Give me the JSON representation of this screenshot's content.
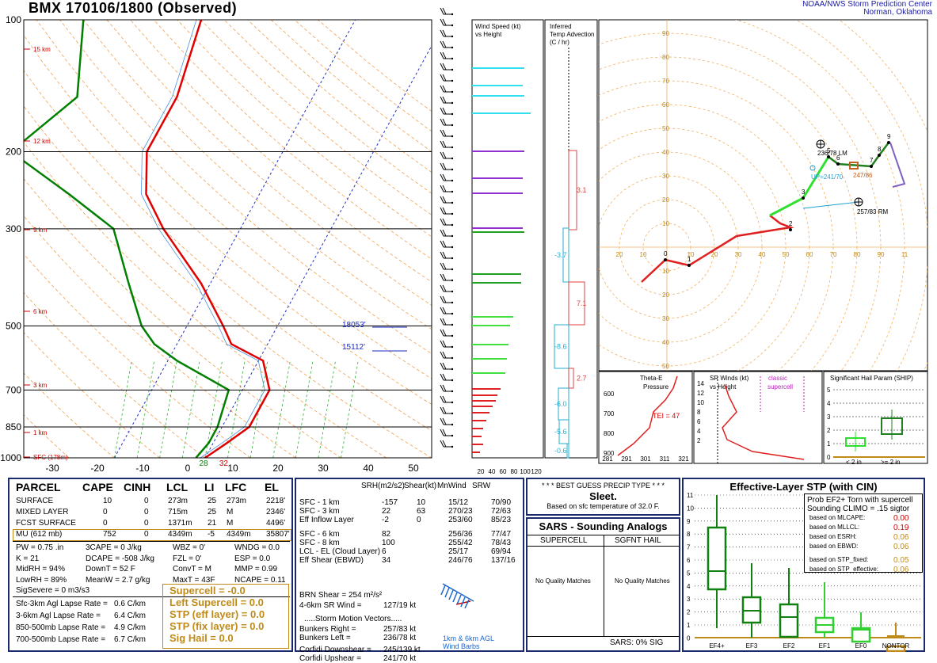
{
  "header": {
    "title": "BMX   170106/1800  (Observed)",
    "credit_line1": "NOAA/NWS Storm Prediction Center",
    "credit_line2": "Norman, Oklahoma"
  },
  "chart_data": [
    {
      "type": "line",
      "panel": "skew-t",
      "pressure_ticks": [
        "100",
        "200",
        "300",
        "500",
        "700",
        "850",
        "1000"
      ],
      "temperature_ticks": [
        "-30",
        "-20",
        "-10",
        "0",
        "10",
        "20",
        "30",
        "40",
        "50"
      ],
      "height_labels": [
        "15 km",
        "12 km",
        "9 km",
        "6 km",
        "3 km",
        "1 km",
        "SFC (178m)"
      ],
      "surface_temp_label": "32",
      "surface_dewpoint_label": "28",
      "effective_layer_labels": [
        "18053'",
        "15112'"
      ],
      "series": [
        {
          "name": "temperature",
          "color": "#e00000",
          "points": [
            [
              1000,
              0
            ],
            [
              925,
              3
            ],
            [
              850,
              6
            ],
            [
              700,
              6
            ],
            [
              600,
              1
            ],
            [
              550,
              -8
            ],
            [
              500,
              -12
            ],
            [
              400,
              -22
            ],
            [
              300,
              -37
            ],
            [
              250,
              -45
            ],
            [
              200,
              -50
            ],
            [
              150,
              -50
            ],
            [
              100,
              -54
            ]
          ]
        },
        {
          "name": "dewpoint",
          "color": "#008000",
          "points": [
            [
              1000,
              -2
            ],
            [
              925,
              -1
            ],
            [
              850,
              -1
            ],
            [
              700,
              -3
            ],
            [
              600,
              -18
            ],
            [
              550,
              -25
            ],
            [
              500,
              -30
            ],
            [
              400,
              -38
            ],
            [
              300,
              -48
            ],
            [
              250,
              -62
            ],
            [
              200,
              -80
            ],
            [
              150,
              -72
            ],
            [
              100,
              -80
            ]
          ]
        }
      ]
    },
    {
      "type": "bar",
      "panel": "wind-speed-vs-height",
      "title": "Wind Speed (kt) vs Height",
      "x_ticks": [
        "20",
        "40",
        "60",
        "80",
        "100",
        "120"
      ]
    },
    {
      "type": "bar",
      "panel": "temp-advection",
      "title": "Inferred Temp Advection (C / hr)",
      "values": [
        "3.1",
        "-3.7",
        "7.1",
        "-8.6",
        "2.7",
        "-6.0",
        "-5.6",
        "-0.6"
      ]
    },
    {
      "type": "line",
      "panel": "hodograph",
      "ring_labels": [
        "10",
        "20",
        "30",
        "40",
        "50",
        "60",
        "70",
        "80",
        "90"
      ],
      "x_labels": [
        "10",
        "20",
        "30",
        "40",
        "50",
        "60",
        "70",
        "80",
        "90",
        "11"
      ],
      "height_markers": [
        "0",
        "1",
        "2",
        "3",
        "5",
        "6",
        "7",
        "8",
        "9"
      ],
      "annotations": [
        "236/78 LM",
        "UP=241/70",
        "247/86",
        "257/83 RM"
      ]
    },
    {
      "type": "line",
      "panel": "theta-e",
      "title": "Theta-E vs Pressure",
      "y_ticks": [
        "600",
        "700",
        "800",
        "900"
      ],
      "x_ticks": [
        "281",
        "291",
        "301",
        "311",
        "321"
      ],
      "tei_label": "TEI = 47"
    },
    {
      "type": "line",
      "panel": "sr-winds",
      "title": "SR Winds (kt) vs Height",
      "y_ticks": [
        "14",
        "12",
        "10",
        "8",
        "6",
        "4",
        "2"
      ],
      "note": "classic supercell"
    },
    {
      "type": "bar",
      "panel": "ship",
      "title": "Significant Hail Param (SHIP)",
      "y_ticks": [
        "5",
        "4",
        "3",
        "2",
        "1",
        "0"
      ],
      "categories": [
        "< 2 in",
        ">= 2 in"
      ]
    },
    {
      "type": "bar",
      "panel": "effective-stp",
      "title": "Effective-Layer STP (with CIN)",
      "categories": [
        "EF4+",
        "EF3",
        "EF2",
        "EF1",
        "EF0",
        "NONTOR"
      ],
      "y_ticks": [
        "11",
        "10",
        "9",
        "8",
        "7",
        "6",
        "5",
        "4",
        "3",
        "2",
        "1",
        "0"
      ]
    }
  ],
  "parcel": {
    "headers": [
      "PARCEL",
      "CAPE",
      "CINH",
      "LCL",
      "LI",
      "LFC",
      "EL"
    ],
    "rows": [
      [
        "SURFACE",
        "10",
        "0",
        "273m",
        "25",
        "273m",
        "2218'"
      ],
      [
        "MIXED LAYER",
        "0",
        "0",
        "715m",
        "25",
        "M",
        "2346'"
      ],
      [
        "FCST SURFACE",
        "0",
        "0",
        "1371m",
        "21",
        "M",
        "4496'"
      ],
      [
        "MU   (612 mb)",
        "752",
        "0",
        "4349m",
        "-5",
        "4349m",
        "35807'"
      ]
    ],
    "indices": [
      [
        "PW = 0.75 .in",
        "3CAPE = 0 J/kg",
        "WBZ = 0'",
        "WNDG = 0.0"
      ],
      [
        "K = 21",
        "DCAPE = -508 J/kg",
        "FZL = 0'",
        "ESP = 0.0"
      ],
      [
        "MidRH = 94%",
        "DownT = 52 F",
        "ConvT = M",
        "MMP = 0.99"
      ],
      [
        "LowRH = 89%",
        "MeanW = 2.7 g/kg",
        "MaxT = 43F",
        "NCAPE = 0.11"
      ]
    ],
    "sig_severe": "SigSevere = 0 m3/s3",
    "lapse": [
      [
        "Sfc-3km Agl Lapse Rate =",
        "0.6 C/km"
      ],
      [
        "3-6km Agl Lapse Rate =",
        "6.4 C/km"
      ],
      [
        "850-500mb Lapse Rate =",
        "4.9 C/km"
      ],
      [
        "700-500mb Lapse Rate =",
        "6.7 C/km"
      ]
    ],
    "composites": [
      "Supercell = -0.0",
      "Left Supercell = 0.0",
      "STP (eff layer) = 0.0",
      "STP (fix layer) = 0.0",
      "Sig Hail = 0.0"
    ]
  },
  "kinematics": {
    "headers": [
      "SRH(m2/s2)",
      "Shear(kt)",
      "MnWind",
      "SRW"
    ],
    "rows": [
      [
        "SFC - 1 km",
        "-157",
        "10",
        "15/12",
        "70/90"
      ],
      [
        "SFC - 3 km",
        "22",
        "63",
        "270/23",
        "72/63"
      ],
      [
        "Eff Inflow Layer",
        "-2",
        "0",
        "253/60",
        "85/23"
      ],
      [
        "SFC - 6 km",
        "82",
        "",
        "256/36",
        "77/47"
      ],
      [
        "SFC - 8 km",
        "100",
        "",
        "255/42",
        "78/43"
      ],
      [
        "LCL - EL (Cloud Layer)",
        "6",
        "",
        "25/17",
        "69/94"
      ],
      [
        "Eff Shear (EBWD)",
        "34",
        "",
        "246/76",
        "137/16"
      ]
    ],
    "brn_shear": "BRN Shear =  254 m²/s²",
    "sr_wind": "4-6km SR Wind =",
    "sr_wind_val": "127/19 kt",
    "storm_motion_title": ".....Storm Motion Vectors.....",
    "storm_motion": [
      [
        "Bunkers Right =",
        "257/83 kt"
      ],
      [
        "Bunkers Left =",
        "236/78 kt"
      ]
    ],
    "corfidi": [
      [
        "Corfidi Downshear =",
        "245/139 kt"
      ],
      [
        "Corfidi Upshear =",
        "241/70 kt"
      ]
    ],
    "barb_caption1": "1km & 6km AGL",
    "barb_caption2": "Wind Barbs"
  },
  "precip": {
    "title": "* * * BEST GUESS PRECIP TYPE * * *",
    "value": "Sleet.",
    "basis": "Based on sfc temperature of 32.0 F."
  },
  "sars": {
    "title": "SARS - Sounding Analogs",
    "col1": "SUPERCELL",
    "col2": "SGFNT HAIL",
    "col1_msg": "No Quality Matches",
    "col2_msg": "No Quality Matches",
    "footer": "SARS:  0% SIG"
  },
  "stp": {
    "prob_line1": "Prob EF2+ Torn with supercell",
    "prob_line2": "Sounding CLIMO = .15 sigtor",
    "items": [
      [
        "based on MLCAPE:",
        "0.00"
      ],
      [
        "based on MLLCL:",
        "0.19"
      ],
      [
        "based on ESRH:",
        "0.06"
      ],
      [
        "based on EBWD:",
        "0.06"
      ],
      [
        "based on STP_fixed:",
        "0.05"
      ],
      [
        "based on STP_effective:",
        "0.06"
      ]
    ]
  },
  "colors": {
    "temperature": "#e00000",
    "dewpoint": "#008000",
    "panel_border": "#1a2a6c",
    "gold": "#c08a18"
  }
}
